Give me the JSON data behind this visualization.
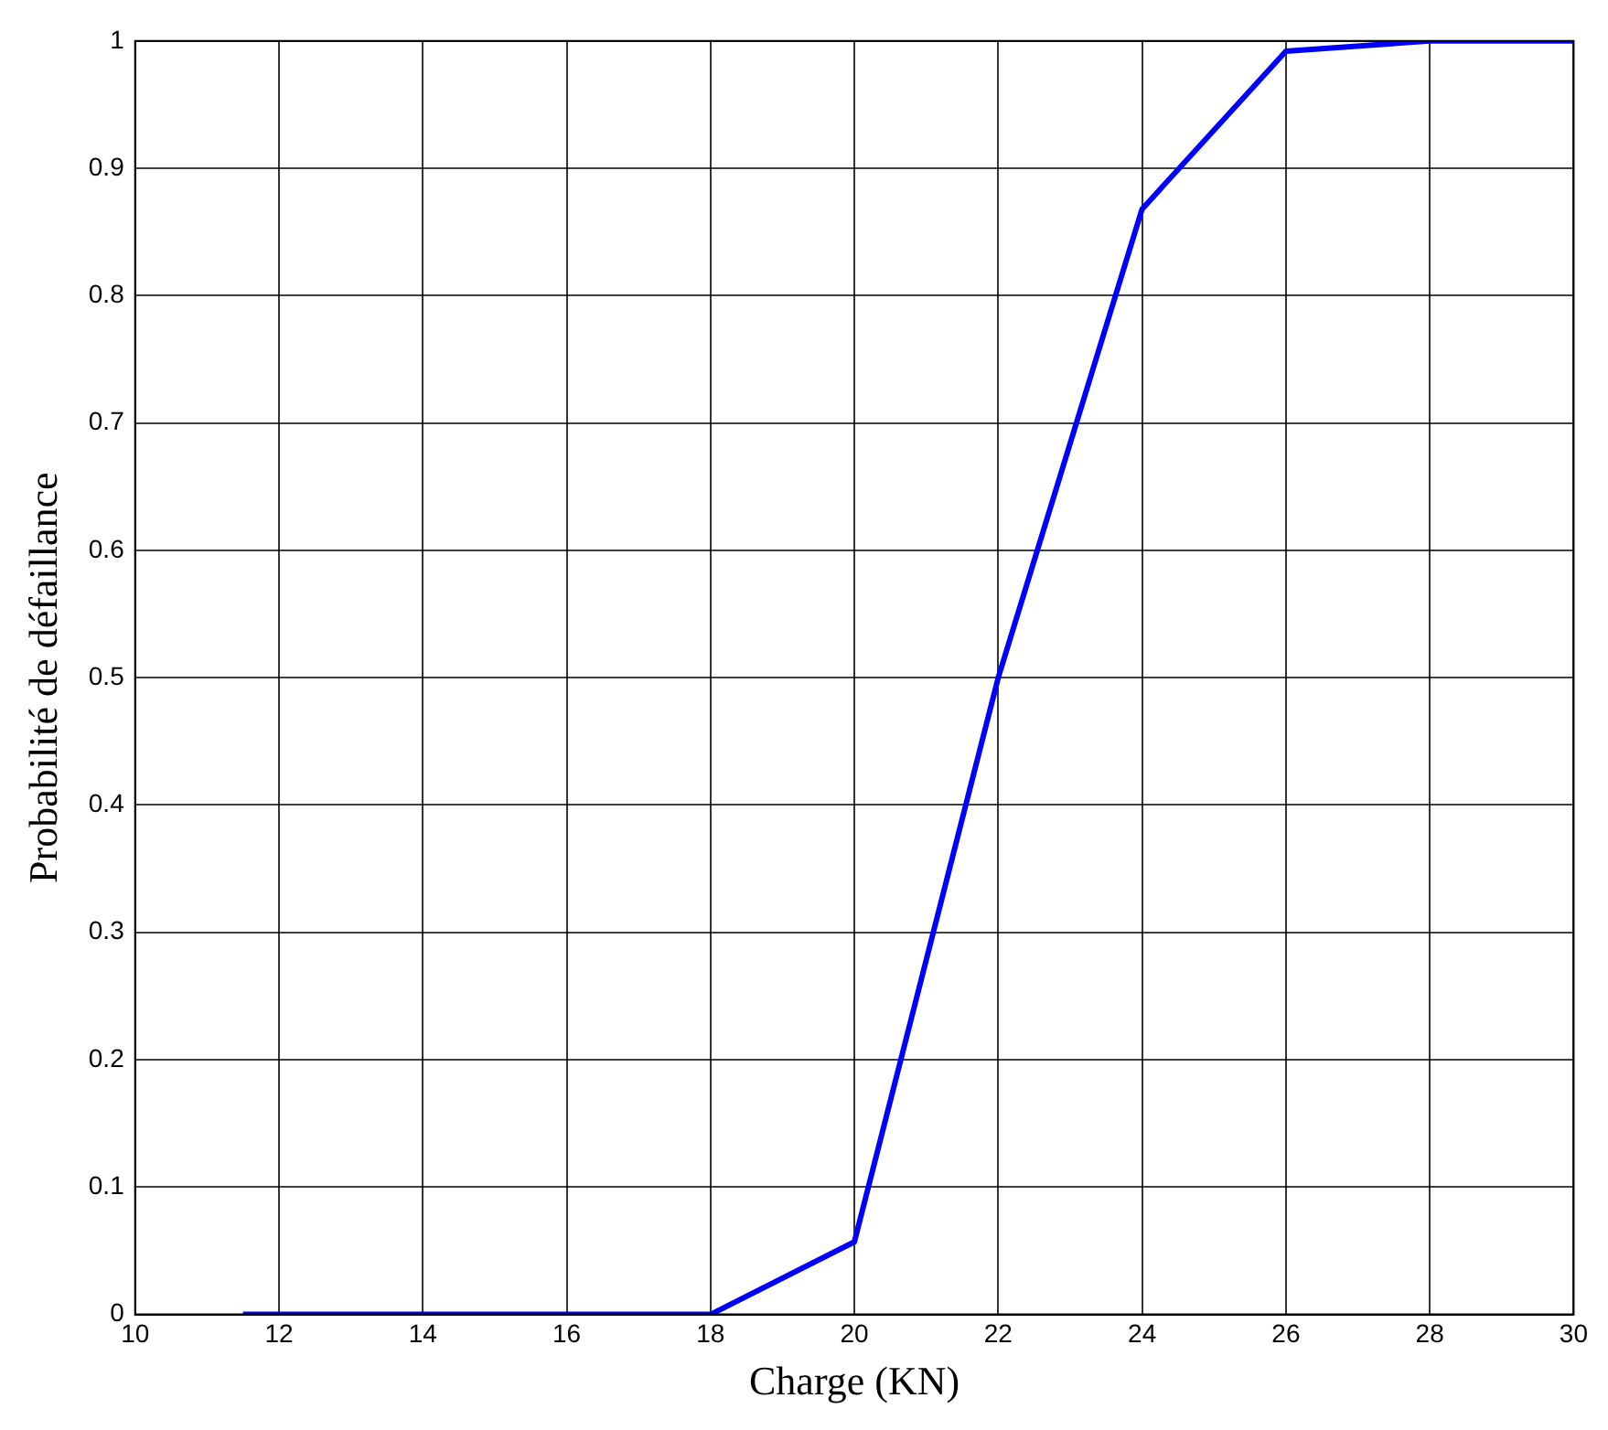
{
  "chart_data": {
    "type": "line",
    "xlabel": "Charge (KN)",
    "ylabel": "Probabilité de défaillance",
    "x": [
      11.5,
      18,
      20,
      22,
      24,
      26,
      28,
      30
    ],
    "series": [
      {
        "color": "#0000ff",
        "values": [
          0,
          0,
          0.057,
          0.5,
          0.868,
          0.992,
          1,
          1
        ]
      }
    ],
    "xlim": [
      10,
      30
    ],
    "xticks": [
      10,
      12,
      14,
      16,
      18,
      20,
      22,
      24,
      26,
      28,
      30
    ],
    "ylim": [
      0,
      1
    ],
    "yticks": [
      0,
      0.1,
      0.2,
      0.3,
      0.4,
      0.5,
      0.6,
      0.7,
      0.8,
      0.9,
      1
    ],
    "grid": true,
    "legend": false,
    "marker": "none",
    "line_style": "solid"
  }
}
